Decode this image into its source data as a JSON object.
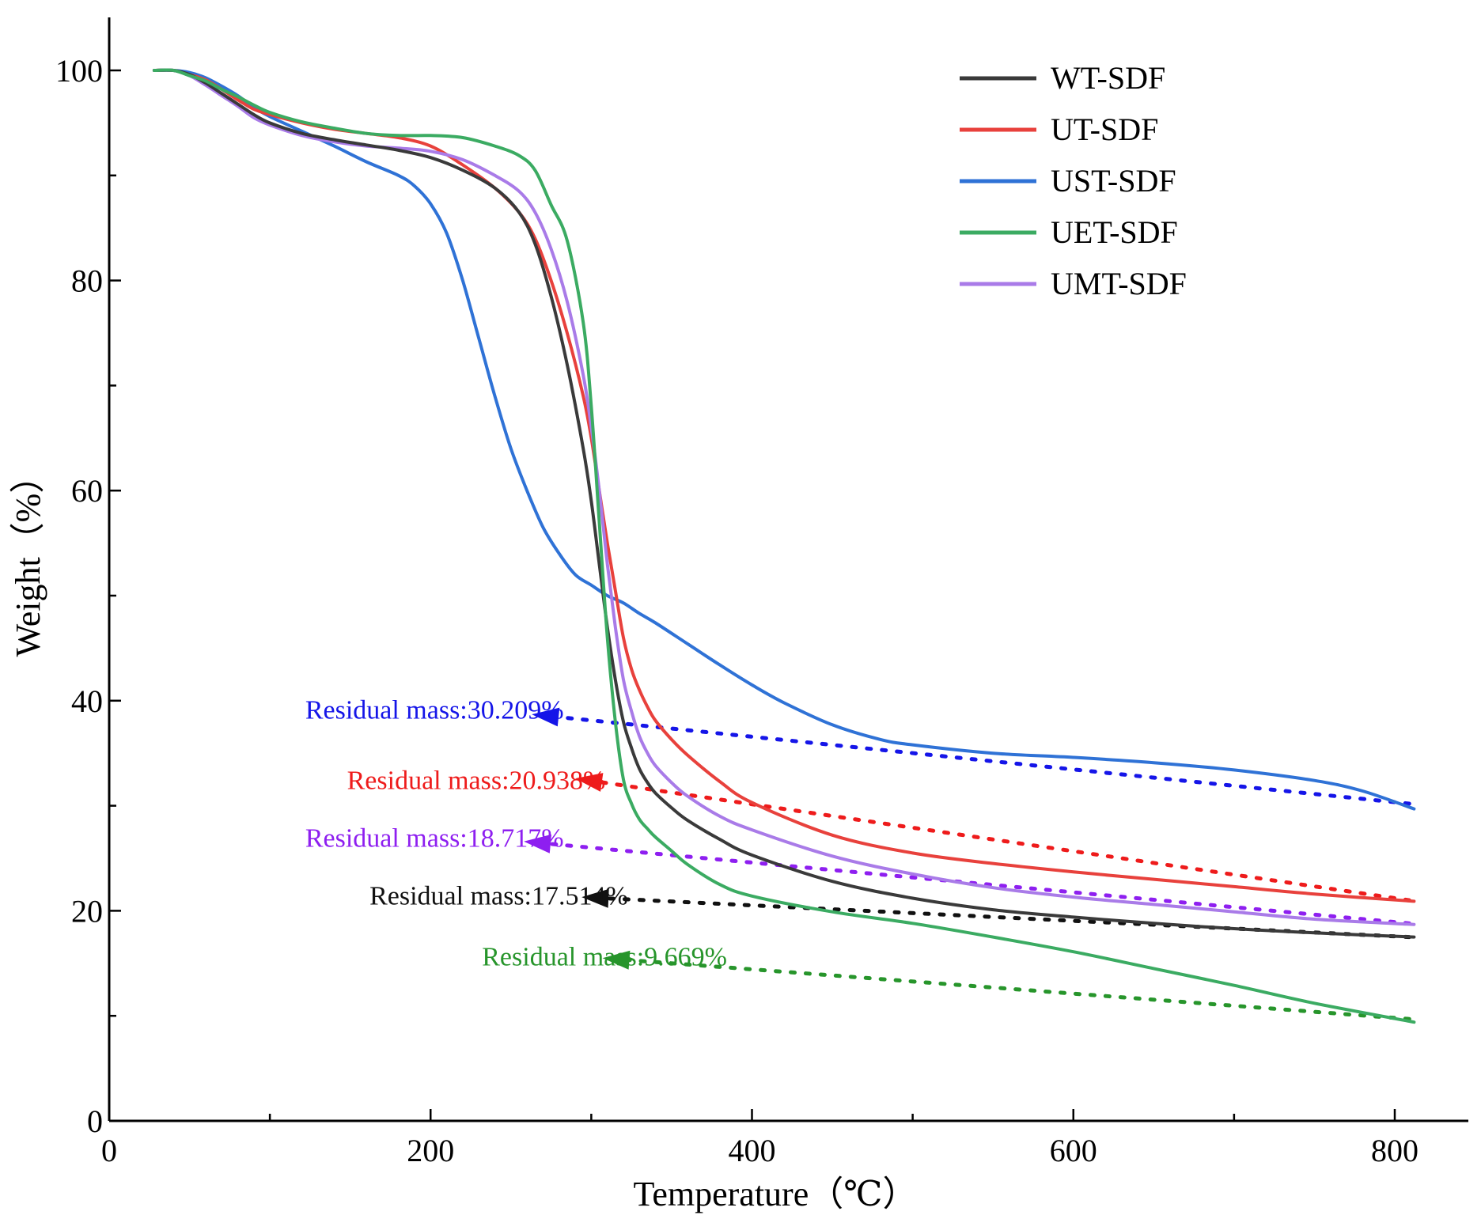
{
  "chart_data": {
    "type": "line",
    "xlabel": "Temperature（℃）",
    "ylabel": "Weight（%）",
    "xlim": [
      0,
      850
    ],
    "ylim": [
      0,
      105
    ],
    "xticks": [
      0,
      200,
      400,
      600,
      800
    ],
    "xtick_labels": [
      "0",
      "200",
      "400",
      "600",
      "800"
    ],
    "yticks": [
      0,
      20,
      40,
      60,
      80,
      100
    ],
    "ytick_labels": [
      "0",
      "20",
      "40",
      "60",
      "80",
      "100"
    ],
    "legend_position": "top-right",
    "series": [
      {
        "name": "WT-SDF",
        "color": "#3a3a3a",
        "x": [
          28,
          40,
          50,
          60,
          70,
          80,
          90,
          100,
          120,
          140,
          160,
          180,
          200,
          220,
          240,
          255,
          265,
          275,
          285,
          295,
          300,
          305,
          310,
          315,
          320,
          325,
          330,
          335,
          340,
          350,
          360,
          380,
          400,
          450,
          500,
          550,
          600,
          650,
          700,
          750,
          812
        ],
        "y": [
          100,
          100,
          99.6,
          98.8,
          97.8,
          96.8,
          95.8,
          95,
          94,
          93.4,
          92.9,
          92.4,
          91.7,
          90.5,
          88.8,
          86.5,
          83.5,
          78.5,
          72,
          64,
          59,
          53,
          47,
          42,
          38,
          35.5,
          33.5,
          32.2,
          31.2,
          29.8,
          28.6,
          26.8,
          25.3,
          22.8,
          21.2,
          20.1,
          19.4,
          18.8,
          18.3,
          17.9,
          17.5
        ]
      },
      {
        "name": "UT-SDF",
        "color": "#e8413c",
        "x": [
          28,
          40,
          50,
          60,
          70,
          80,
          90,
          100,
          120,
          140,
          160,
          180,
          200,
          220,
          240,
          255,
          265,
          275,
          285,
          295,
          300,
          305,
          310,
          315,
          320,
          325,
          330,
          335,
          340,
          350,
          360,
          380,
          400,
          450,
          500,
          550,
          600,
          650,
          700,
          750,
          812
        ],
        "y": [
          100,
          100,
          99.6,
          99.1,
          98.2,
          97.2,
          96.3,
          95.8,
          95,
          94.4,
          94,
          93.6,
          92.8,
          91,
          88.8,
          86.5,
          84,
          80,
          75,
          69,
          65,
          60,
          55,
          50.5,
          46,
          43,
          41,
          39.4,
          38.1,
          36.3,
          34.8,
          32.3,
          30.3,
          27.2,
          25.5,
          24.5,
          23.7,
          23,
          22.3,
          21.6,
          20.9
        ]
      },
      {
        "name": "UST-SDF",
        "color": "#2f72d6",
        "x": [
          28,
          40,
          50,
          60,
          70,
          80,
          90,
          100,
          120,
          140,
          160,
          180,
          190,
          200,
          210,
          220,
          230,
          240,
          250,
          260,
          270,
          280,
          290,
          300,
          310,
          320,
          330,
          340,
          360,
          380,
          400,
          420,
          450,
          480,
          500,
          550,
          600,
          650,
          700,
          750,
          780,
          812
        ],
        "y": [
          100,
          100,
          99.8,
          99.3,
          98.5,
          97.6,
          96.5,
          95.6,
          94.2,
          92.8,
          91.3,
          90,
          89,
          87.3,
          84.5,
          80,
          74.5,
          69,
          64,
          60,
          56.5,
          54,
          52,
          51,
          50,
          49.3,
          48.3,
          47.4,
          45.4,
          43.4,
          41.5,
          39.8,
          37.7,
          36.3,
          35.8,
          35,
          34.6,
          34.1,
          33.4,
          32.4,
          31.4,
          29.7
        ]
      },
      {
        "name": "UET-SDF",
        "color": "#3bab62",
        "x": [
          28,
          40,
          50,
          60,
          70,
          80,
          90,
          100,
          120,
          140,
          160,
          180,
          200,
          220,
          240,
          255,
          265,
          275,
          285,
          295,
          300,
          305,
          310,
          315,
          320,
          325,
          330,
          335,
          340,
          350,
          360,
          380,
          400,
          450,
          500,
          550,
          600,
          650,
          700,
          750,
          812
        ],
        "y": [
          100,
          100,
          99.5,
          99,
          98.2,
          97.5,
          96.7,
          96,
          95.1,
          94.5,
          94,
          93.8,
          93.8,
          93.6,
          92.8,
          91.9,
          90.5,
          87.2,
          83.8,
          76,
          68,
          57,
          46,
          38,
          32.5,
          30.2,
          28.7,
          27.8,
          27,
          25.7,
          24.4,
          22.5,
          21.4,
          19.9,
          18.8,
          17.5,
          16.1,
          14.5,
          12.9,
          11.2,
          9.4
        ]
      },
      {
        "name": "UMT-SDF",
        "color": "#a97be8",
        "x": [
          28,
          40,
          50,
          60,
          70,
          80,
          90,
          100,
          120,
          140,
          160,
          180,
          200,
          220,
          240,
          255,
          265,
          275,
          285,
          295,
          300,
          305,
          310,
          315,
          320,
          325,
          330,
          335,
          340,
          350,
          360,
          380,
          400,
          450,
          500,
          550,
          600,
          650,
          700,
          750,
          812
        ],
        "y": [
          100,
          100,
          99.5,
          98.6,
          97.6,
          96.6,
          95.5,
          94.8,
          93.8,
          93.2,
          92.8,
          92.6,
          92.3,
          91.5,
          90,
          88.5,
          86.5,
          83,
          78,
          71,
          66,
          60,
          53,
          47,
          42,
          39,
          36.6,
          35,
          33.8,
          32.2,
          30.9,
          29,
          27.7,
          25.2,
          23.5,
          22.2,
          21.3,
          20.6,
          19.9,
          19.2,
          18.7
        ]
      }
    ],
    "annotations": [
      {
        "text": "Residual mass:30.209%",
        "color": "#1515e8",
        "label_x": 122,
        "label_y": 39.2,
        "arrow_tip": [
          263,
          38.7
        ],
        "arrow_from": [
          809,
          30.2
        ]
      },
      {
        "text": "Residual mass:20.938%",
        "color": "#ee1b1b",
        "label_x": 148,
        "label_y": 32.5,
        "arrow_tip": [
          290,
          32.6
        ],
        "arrow_from": [
          809,
          21.0
        ]
      },
      {
        "text": "Residual mass:18.717%",
        "color": "#8e1ff0",
        "label_x": 122,
        "label_y": 27.0,
        "arrow_tip": [
          258,
          26.6
        ],
        "arrow_from": [
          809,
          18.8
        ]
      },
      {
        "text": "Residual mass:17.514%",
        "color": "#111111",
        "label_x": 162,
        "label_y": 21.5,
        "arrow_tip": [
          294,
          21.3
        ],
        "arrow_from": [
          809,
          17.5
        ]
      },
      {
        "text": "Residual mass:9.669%",
        "color": "#27952b",
        "label_x": 232,
        "label_y": 15.7,
        "arrow_tip": [
          307,
          15.5
        ],
        "arrow_from": [
          809,
          9.7
        ]
      }
    ]
  }
}
